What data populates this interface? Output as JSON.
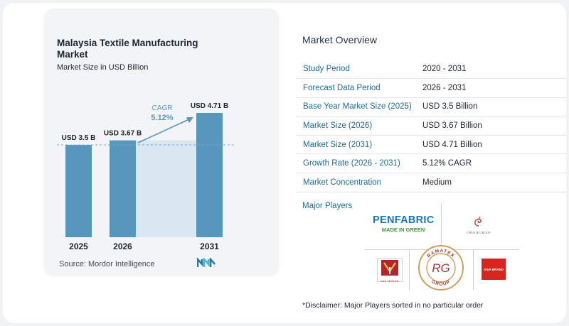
{
  "chart_data": {
    "type": "bar",
    "title": "Malaysia Textile Manufacturing Market",
    "subtitle": "Market Size in USD Billion",
    "categories": [
      "2025",
      "2026",
      "2031"
    ],
    "values": [
      3.5,
      3.67,
      4.71
    ],
    "data_labels": [
      "USD 3.5 B",
      "USD 3.67 B",
      "USD 4.71 B"
    ],
    "cagr_label": "CAGR",
    "cagr_value": "5.12%",
    "ylim": [
      0,
      4.71
    ],
    "grid": false,
    "colors": {
      "bar": "#5797bd",
      "band": "#d9e7f1",
      "ref_line": "#7aa9c6",
      "arrow": "#5797bd",
      "cagr": "#5797bd"
    }
  },
  "source": "Source:  Mordor Intelligence",
  "overview": {
    "title": "Market Overview",
    "rows": [
      {
        "key": "Study Period",
        "value": "2020 - 2031"
      },
      {
        "key": "Forecast Data Period",
        "value": "2026 - 2031"
      },
      {
        "key": "Base Year Market Size (2025)",
        "value": "USD 3.5 Billion"
      },
      {
        "key": "Market Size (2026)",
        "value": "USD 3.67 Billion"
      },
      {
        "key": "Market Size (2031)",
        "value": "USD 4.71 Billion"
      },
      {
        "key": "Growth Rate (2026 - 2031)",
        "value": "5.12% CAGR"
      },
      {
        "key": "Market Concentration",
        "value": "Medium"
      }
    ]
  },
  "players": {
    "title": "Major Players",
    "logos": {
      "penfabric": {
        "line1": "PENFABRIC",
        "line2": "MADE IN GREEN"
      },
      "chinese_group": "CHIAOE GROUP",
      "dt": "D&Y TEXTILE",
      "ramatex": {
        "ring_top": "RAMATEX",
        "ring_bottom": "GROUP",
        "monogram": "RG"
      },
      "red_brand": "ASIA BRAND"
    }
  },
  "disclaimer": "*Disclaimer: Major Players sorted in no particular order"
}
